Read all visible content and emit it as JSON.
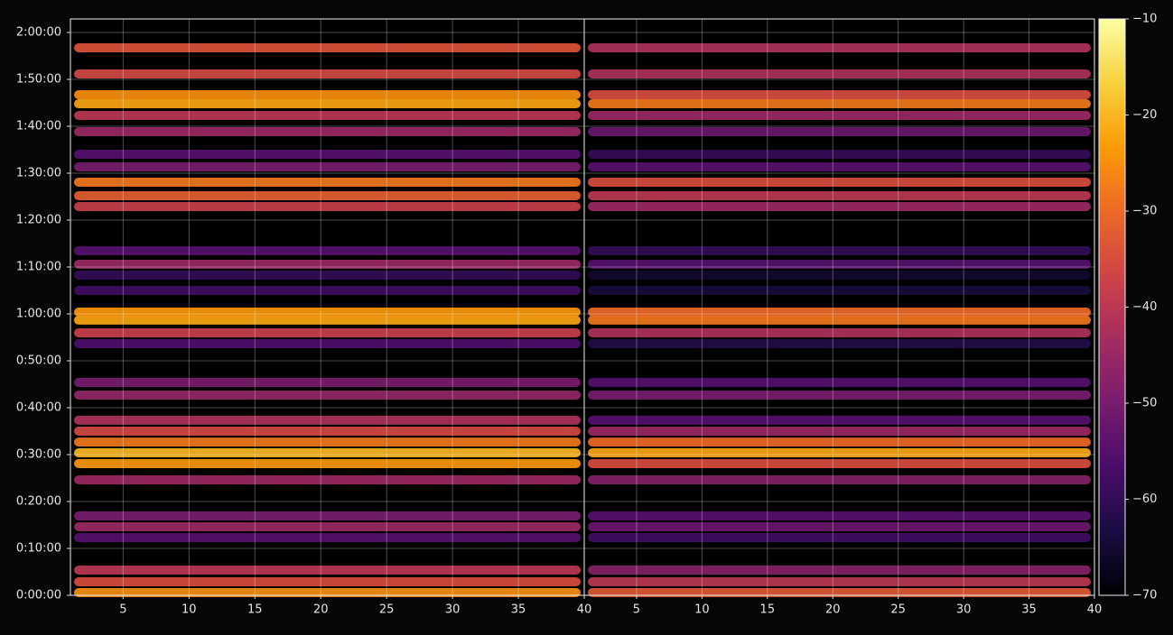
{
  "chart_data": {
    "type": "heatmap",
    "ylim": [
      0,
      7373
    ],
    "yticks": [
      {
        "value": 0,
        "label": "0:00:00"
      },
      {
        "value": 600,
        "label": "0:10:00"
      },
      {
        "value": 1200,
        "label": "0:20:00"
      },
      {
        "value": 1800,
        "label": "0:30:00"
      },
      {
        "value": 2400,
        "label": "0:40:00"
      },
      {
        "value": 3000,
        "label": "0:50:00"
      },
      {
        "value": 3600,
        "label": "1:00:00"
      },
      {
        "value": 4200,
        "label": "1:10:00"
      },
      {
        "value": 4800,
        "label": "1:20:00"
      },
      {
        "value": 5400,
        "label": "1:30:00"
      },
      {
        "value": 6000,
        "label": "1:40:00"
      },
      {
        "value": 6600,
        "label": "1:50:00"
      },
      {
        "value": 7200,
        "label": "2:00:00"
      }
    ],
    "grid": true,
    "y": [
      35,
      173,
      323,
      738,
      877,
      1015,
      1477,
      1685,
      1823,
      1960,
      2100,
      2240,
      2562,
      2723,
      3219,
      3358,
      3520,
      3623,
      3900,
      4096,
      4235,
      4408,
      4973,
      5112,
      5285,
      5481,
      5642,
      5931,
      6138,
      6288,
      6404,
      6669,
      7004
    ],
    "panels": [
      {
        "xlim": [
          1,
          40
        ],
        "xticks": [
          5,
          10,
          15,
          20,
          25,
          30,
          35,
          40
        ],
        "values": [
          -25,
          -35,
          -40,
          -55,
          -45,
          -50,
          -45,
          -24,
          -20,
          -28,
          -36,
          -42,
          -46,
          -50,
          -56,
          -38,
          -22,
          -24,
          -58,
          -60,
          -45,
          -55,
          -38,
          -32,
          -28,
          -50,
          -55,
          -45,
          -40,
          -22,
          -25,
          -36,
          -34
        ]
      },
      {
        "xlim": [
          1,
          40
        ],
        "xticks": [
          5,
          10,
          15,
          20,
          25,
          30,
          35,
          40
        ],
        "values": [
          -33,
          -40,
          -48,
          -58,
          -52,
          -55,
          -48,
          -35,
          -22,
          -30,
          -45,
          -55,
          -50,
          -55,
          -62,
          -42,
          -28,
          -30,
          -64,
          -65,
          -55,
          -60,
          -45,
          -40,
          -35,
          -55,
          -60,
          -52,
          -45,
          -28,
          -35,
          -42,
          -42
        ]
      }
    ],
    "colorbar": {
      "lim": [
        -70,
        -10
      ],
      "ticks": [
        {
          "value": -70,
          "label": "−70"
        },
        {
          "value": -60,
          "label": "−60"
        },
        {
          "value": -50,
          "label": "−50"
        },
        {
          "value": -40,
          "label": "−40"
        },
        {
          "value": -30,
          "label": "−30"
        },
        {
          "value": -20,
          "label": "−20"
        },
        {
          "value": -10,
          "label": "−10"
        }
      ]
    },
    "colormap": [
      "#000004",
      "#1b0c41",
      "#4a0c6b",
      "#781c6d",
      "#a52c60",
      "#cf4446",
      "#ed6925",
      "#fb9b06",
      "#f7d13d",
      "#fcffa4"
    ]
  }
}
